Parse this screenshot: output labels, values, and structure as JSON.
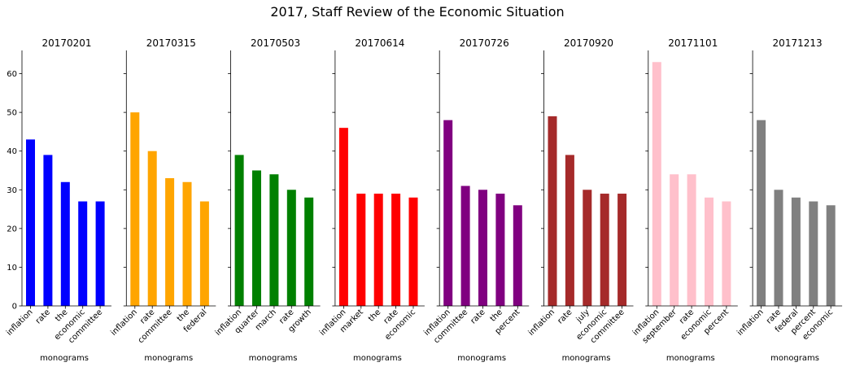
{
  "figure_title": "2017, Staff Review of the Economic Situation",
  "chart_data": [
    {
      "type": "bar",
      "title": "20170201",
      "xlabel": "monograms",
      "ylabel": "",
      "ylim": [
        0,
        66
      ],
      "yticks": [
        0,
        10,
        20,
        30,
        40,
        50,
        60
      ],
      "color": "#0000ff",
      "categories": [
        "inflation",
        "rate",
        "the",
        "economic",
        "committee"
      ],
      "values": [
        43,
        39,
        32,
        27,
        27
      ]
    },
    {
      "type": "bar",
      "title": "20170315",
      "xlabel": "monograms",
      "ylabel": "",
      "ylim": [
        0,
        66
      ],
      "yticks": [
        0,
        10,
        20,
        30,
        40,
        50,
        60
      ],
      "color": "#ffa500",
      "categories": [
        "inflation",
        "rate",
        "committee",
        "the",
        "federal"
      ],
      "values": [
        50,
        40,
        33,
        32,
        27
      ]
    },
    {
      "type": "bar",
      "title": "20170503",
      "xlabel": "monograms",
      "ylabel": "",
      "ylim": [
        0,
        66
      ],
      "yticks": [
        0,
        10,
        20,
        30,
        40,
        50,
        60
      ],
      "color": "#008000",
      "categories": [
        "inflation",
        "quarter",
        "march",
        "rate",
        "growth"
      ],
      "values": [
        39,
        35,
        34,
        30,
        28
      ]
    },
    {
      "type": "bar",
      "title": "20170614",
      "xlabel": "monograms",
      "ylabel": "",
      "ylim": [
        0,
        66
      ],
      "yticks": [
        0,
        10,
        20,
        30,
        40,
        50,
        60
      ],
      "color": "#ff0000",
      "categories": [
        "inflation",
        "market",
        "the",
        "rate",
        "economic"
      ],
      "values": [
        46,
        29,
        29,
        29,
        28
      ]
    },
    {
      "type": "bar",
      "title": "20170726",
      "xlabel": "monograms",
      "ylabel": "",
      "ylim": [
        0,
        66
      ],
      "yticks": [
        0,
        10,
        20,
        30,
        40,
        50,
        60
      ],
      "color": "#800080",
      "categories": [
        "inflation",
        "committee",
        "rate",
        "the",
        "percent"
      ],
      "values": [
        48,
        31,
        30,
        29,
        26
      ]
    },
    {
      "type": "bar",
      "title": "20170920",
      "xlabel": "monograms",
      "ylabel": "",
      "ylim": [
        0,
        66
      ],
      "yticks": [
        0,
        10,
        20,
        30,
        40,
        50,
        60
      ],
      "color": "#a52a2a",
      "categories": [
        "inflation",
        "rate",
        "july",
        "economic",
        "committee"
      ],
      "values": [
        49,
        39,
        30,
        29,
        29
      ]
    },
    {
      "type": "bar",
      "title": "20171101",
      "xlabel": "monograms",
      "ylabel": "",
      "ylim": [
        0,
        66
      ],
      "yticks": [
        0,
        10,
        20,
        30,
        40,
        50,
        60
      ],
      "color": "#ffc0cb",
      "categories": [
        "inflation",
        "september",
        "rate",
        "economic",
        "percent"
      ],
      "values": [
        63,
        34,
        34,
        28,
        27
      ]
    },
    {
      "type": "bar",
      "title": "20171213",
      "xlabel": "monograms",
      "ylabel": "",
      "ylim": [
        0,
        66
      ],
      "yticks": [
        0,
        10,
        20,
        30,
        40,
        50,
        60
      ],
      "color": "#808080",
      "categories": [
        "inflation",
        "rate",
        "federal",
        "percent",
        "economic"
      ],
      "values": [
        48,
        30,
        28,
        27,
        26
      ]
    }
  ]
}
